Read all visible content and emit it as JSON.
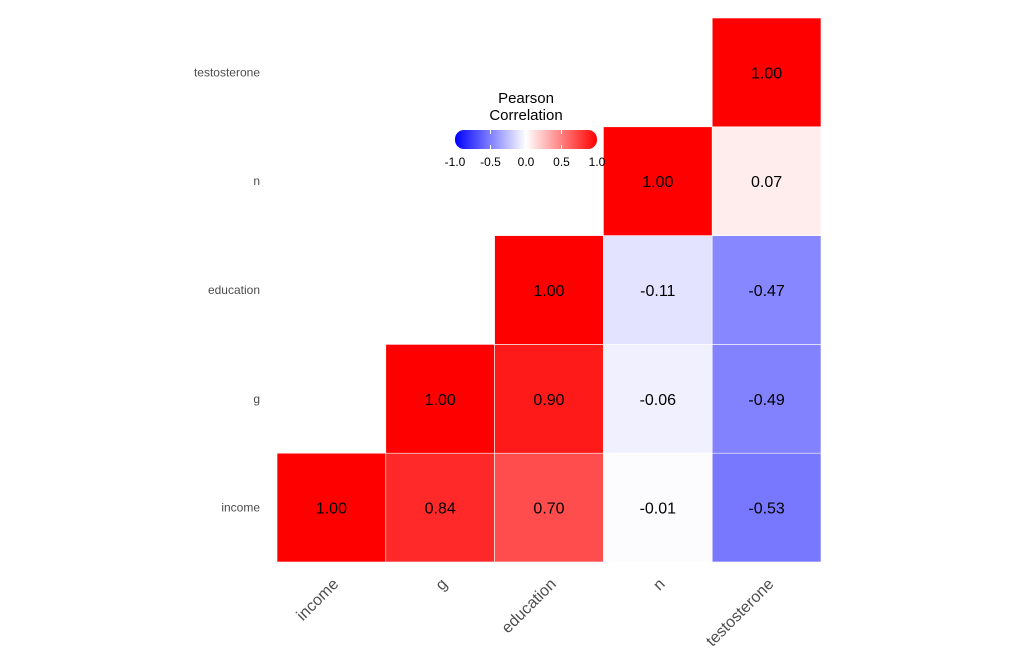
{
  "chart_data": {
    "type": "heatmap",
    "title": "",
    "xlabel": "",
    "ylabel": "",
    "variables": [
      "income",
      "g",
      "education",
      "n",
      "testosterone"
    ],
    "matrix": [
      [
        1.0,
        0.84,
        0.7,
        -0.01,
        -0.53
      ],
      [
        0.84,
        1.0,
        0.9,
        -0.06,
        -0.49
      ],
      [
        0.7,
        0.9,
        1.0,
        -0.11,
        -0.47
      ],
      [
        -0.01,
        -0.06,
        -0.11,
        1.0,
        0.07
      ],
      [
        -0.53,
        -0.49,
        -0.47,
        0.07,
        1.0
      ]
    ],
    "display": "upper-triangle",
    "value_format": "2-decimals",
    "legend": {
      "title_line1": "Pearson",
      "title_line2": "Correlation",
      "ticks": [
        -1.0,
        -0.5,
        0.0,
        0.5,
        1.0
      ],
      "tick_labels": [
        "-1.0",
        "-0.5",
        "0.0",
        "0.5",
        "1.0"
      ],
      "range": [
        -1,
        1
      ],
      "colors": {
        "low": "#0000FF",
        "mid": "#FFFFFF",
        "high": "#FF0000"
      },
      "placement": "top-left inside plot"
    }
  }
}
